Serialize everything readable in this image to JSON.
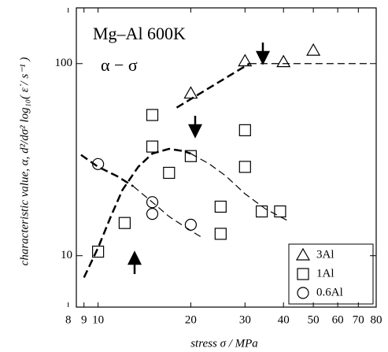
{
  "chart_data": {
    "type": "scatter",
    "title": "Mg–Al 600K",
    "subtitle": "α − σ",
    "x_label": "stress σ / MPa",
    "y_label": "characteristic value, α,  d²/dσ² log₁₀( ε̇ / s⁻¹ )",
    "xlog": true,
    "ylog": true,
    "xlim": [
      8.5,
      80
    ],
    "ylim": [
      5.4,
      195
    ],
    "xticks": [
      8,
      9,
      10,
      20,
      30,
      40,
      50,
      60,
      70,
      80
    ],
    "yticks": [
      10,
      100
    ],
    "legend": "lower right",
    "series": [
      {
        "name": "3Al",
        "marker": "triangle",
        "color": "#000000",
        "x": [
          20,
          30,
          40,
          50
        ],
        "values": [
          70,
          103,
          102,
          117
        ]
      },
      {
        "name": "1Al",
        "marker": "square",
        "color": "#000000",
        "x": [
          10,
          12.2,
          15,
          15,
          17,
          20,
          25,
          25,
          30,
          30,
          34,
          39
        ],
        "values": [
          10.5,
          14.8,
          54,
          37,
          27,
          33,
          18,
          13,
          45,
          29,
          17,
          17
        ]
      },
      {
        "name": "0.6Al",
        "marker": "circle",
        "color": "#000000",
        "x": [
          10,
          15,
          15,
          20
        ],
        "values": [
          30,
          19,
          16.5,
          14.5
        ]
      }
    ],
    "fits": [
      {
        "width": 2.5,
        "x": [
          18,
          31
        ],
        "values": [
          59,
          100
        ]
      },
      {
        "width": 1.2,
        "x": [
          31,
          75
        ],
        "values": [
          100,
          100
        ]
      },
      {
        "width": 2.5,
        "x": [
          9,
          10,
          11,
          12,
          13.5,
          15,
          17,
          19,
          20
        ],
        "values": [
          7.7,
          11,
          16,
          22,
          29,
          34,
          36,
          35,
          34
        ]
      },
      {
        "width": 1.2,
        "x": [
          20,
          23,
          26,
          30,
          35,
          42
        ],
        "values": [
          34,
          30,
          26,
          21,
          17.5,
          15
        ]
      },
      {
        "width": 2.5,
        "x": [
          8.8,
          10,
          11.5,
          13
        ],
        "values": [
          33.5,
          29,
          26,
          23
        ]
      },
      {
        "width": 1.2,
        "x": [
          13,
          15,
          17,
          20,
          22
        ],
        "values": [
          23,
          19,
          16,
          13.5,
          12.3
        ]
      }
    ]
  }
}
